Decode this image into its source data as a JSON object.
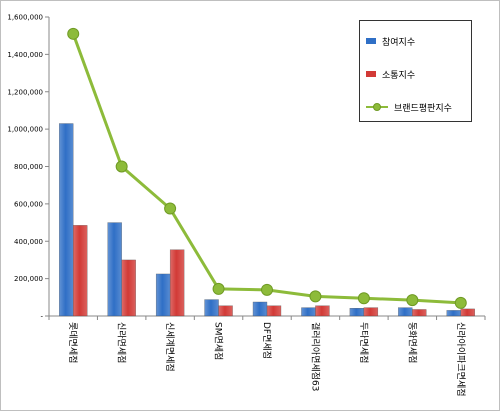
{
  "chart_data": {
    "type": "bar",
    "categories": [
      "롯데면세점",
      "신라면세점",
      "신세계면세점",
      "SM면세점",
      "DF면세점",
      "갤러리아면세점63",
      "두타면세점",
      "동화면세점",
      "신라아이파크면세점"
    ],
    "series": [
      {
        "name": "참여지수",
        "kind": "bar",
        "color": "#2f6fc6",
        "values": [
          1030000,
          500000,
          225000,
          88000,
          75000,
          45000,
          42000,
          45000,
          30000
        ]
      },
      {
        "name": "소통지수",
        "kind": "bar",
        "color": "#d23a36",
        "values": [
          485000,
          300000,
          355000,
          55000,
          55000,
          55000,
          45000,
          35000,
          38000
        ]
      },
      {
        "name": "브랜드평판지수",
        "kind": "line",
        "color": "#8dbb3a",
        "values": [
          1510000,
          800000,
          575000,
          145000,
          140000,
          105000,
          95000,
          85000,
          70000
        ]
      }
    ],
    "ylim": [
      0,
      1600000
    ],
    "yticks": [
      "-",
      "200,000",
      "400,000",
      "600,000",
      "800,000",
      "1,000,000",
      "1,200,000",
      "1,400,000",
      "1,600,000"
    ],
    "ytick_values": [
      0,
      200000,
      400000,
      600000,
      800000,
      1000000,
      1200000,
      1400000,
      1600000
    ],
    "grid": false,
    "legend": "top-right",
    "title": "",
    "xlabel": "",
    "ylabel": ""
  }
}
